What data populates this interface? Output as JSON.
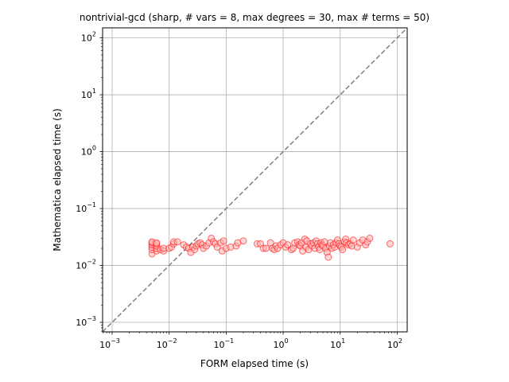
{
  "chart_data": {
    "type": "scatter",
    "title": "nontrivial-gcd (sharp, # vars = 8, max degrees = 30, max # terms = 50)",
    "xlabel": "FORM elapsed time (s)",
    "ylabel": "Mathematica elapsed time (s)",
    "xscale": "log",
    "yscale": "log",
    "xlim": [
      0.00068,
      150
    ],
    "ylim": [
      0.00068,
      150
    ],
    "grid": true,
    "x_ticks": [
      {
        "base": "10",
        "exp": "−3",
        "value": 0.001
      },
      {
        "base": "10",
        "exp": "−2",
        "value": 0.01
      },
      {
        "base": "10",
        "exp": "−1",
        "value": 0.1
      },
      {
        "base": "10",
        "exp": "0",
        "value": 1
      },
      {
        "base": "10",
        "exp": "1",
        "value": 10
      },
      {
        "base": "10",
        "exp": "2",
        "value": 100
      }
    ],
    "y_ticks": [
      {
        "base": "10",
        "exp": "−3",
        "value": 0.001
      },
      {
        "base": "10",
        "exp": "−2",
        "value": 0.01
      },
      {
        "base": "10",
        "exp": "−1",
        "value": 0.1
      },
      {
        "base": "10",
        "exp": "0",
        "value": 1
      },
      {
        "base": "10",
        "exp": "1",
        "value": 10
      },
      {
        "base": "10",
        "exp": "2",
        "value": 100
      }
    ],
    "reference_line": {
      "style": "dashed",
      "color": "#808080",
      "relation": "y = x"
    },
    "marker_color": "#ff0000",
    "marker_fill": "#ffb3b3",
    "points": [
      [
        0.005,
        0.016
      ],
      [
        0.005,
        0.019
      ],
      [
        0.005,
        0.021
      ],
      [
        0.005,
        0.023
      ],
      [
        0.005,
        0.025
      ],
      [
        0.005,
        0.026
      ],
      [
        0.006,
        0.018
      ],
      [
        0.006,
        0.02
      ],
      [
        0.006,
        0.022
      ],
      [
        0.006,
        0.024
      ],
      [
        0.006,
        0.025
      ],
      [
        0.007,
        0.019
      ],
      [
        0.008,
        0.018
      ],
      [
        0.008,
        0.02
      ],
      [
        0.01,
        0.02
      ],
      [
        0.011,
        0.021
      ],
      [
        0.012,
        0.024
      ],
      [
        0.012,
        0.026
      ],
      [
        0.014,
        0.026
      ],
      [
        0.018,
        0.023
      ],
      [
        0.02,
        0.021
      ],
      [
        0.022,
        0.02
      ],
      [
        0.024,
        0.017
      ],
      [
        0.026,
        0.021
      ],
      [
        0.028,
        0.019
      ],
      [
        0.03,
        0.022
      ],
      [
        0.032,
        0.024
      ],
      [
        0.035,
        0.025
      ],
      [
        0.038,
        0.023
      ],
      [
        0.04,
        0.02
      ],
      [
        0.045,
        0.022
      ],
      [
        0.05,
        0.025
      ],
      [
        0.055,
        0.03
      ],
      [
        0.06,
        0.026
      ],
      [
        0.065,
        0.024
      ],
      [
        0.07,
        0.021
      ],
      [
        0.08,
        0.025
      ],
      [
        0.085,
        0.018
      ],
      [
        0.09,
        0.027
      ],
      [
        0.1,
        0.02
      ],
      [
        0.12,
        0.021
      ],
      [
        0.15,
        0.022
      ],
      [
        0.16,
        0.025
      ],
      [
        0.2,
        0.027
      ],
      [
        0.35,
        0.024
      ],
      [
        0.4,
        0.024
      ],
      [
        0.45,
        0.02
      ],
      [
        0.5,
        0.02
      ],
      [
        0.6,
        0.025
      ],
      [
        0.65,
        0.02
      ],
      [
        0.7,
        0.019
      ],
      [
        0.75,
        0.022
      ],
      [
        0.8,
        0.02
      ],
      [
        0.9,
        0.023
      ],
      [
        1.0,
        0.025
      ],
      [
        1.1,
        0.021
      ],
      [
        1.2,
        0.023
      ],
      [
        1.4,
        0.019
      ],
      [
        1.5,
        0.02
      ],
      [
        1.6,
        0.025
      ],
      [
        1.8,
        0.026
      ],
      [
        1.9,
        0.023
      ],
      [
        2.0,
        0.022
      ],
      [
        2.1,
        0.025
      ],
      [
        2.2,
        0.018
      ],
      [
        2.4,
        0.029
      ],
      [
        2.5,
        0.021
      ],
      [
        2.6,
        0.027
      ],
      [
        2.8,
        0.019
      ],
      [
        3.0,
        0.024
      ],
      [
        3.2,
        0.022
      ],
      [
        3.4,
        0.025
      ],
      [
        3.6,
        0.02
      ],
      [
        3.8,
        0.027
      ],
      [
        4.0,
        0.024
      ],
      [
        4.2,
        0.021
      ],
      [
        4.4,
        0.019
      ],
      [
        4.6,
        0.025
      ],
      [
        4.8,
        0.023
      ],
      [
        5.0,
        0.022
      ],
      [
        5.3,
        0.026
      ],
      [
        5.6,
        0.02
      ],
      [
        5.9,
        0.017
      ],
      [
        6.2,
        0.014
      ],
      [
        6.5,
        0.022
      ],
      [
        6.8,
        0.025
      ],
      [
        7.2,
        0.02
      ],
      [
        7.6,
        0.023
      ],
      [
        8.0,
        0.021
      ],
      [
        8.5,
        0.025
      ],
      [
        9.0,
        0.028
      ],
      [
        9.5,
        0.024
      ],
      [
        10.0,
        0.022
      ],
      [
        10.5,
        0.021
      ],
      [
        11.0,
        0.019
      ],
      [
        12.0,
        0.026
      ],
      [
        12.5,
        0.029
      ],
      [
        13.0,
        0.025
      ],
      [
        14.0,
        0.023
      ],
      [
        15.0,
        0.024
      ],
      [
        16.0,
        0.022
      ],
      [
        17.0,
        0.028
      ],
      [
        20.0,
        0.021
      ],
      [
        22.0,
        0.025
      ],
      [
        25.0,
        0.028
      ],
      [
        28.0,
        0.023
      ],
      [
        30.0,
        0.026
      ],
      [
        33.0,
        0.03
      ],
      [
        75.0,
        0.024
      ]
    ]
  }
}
